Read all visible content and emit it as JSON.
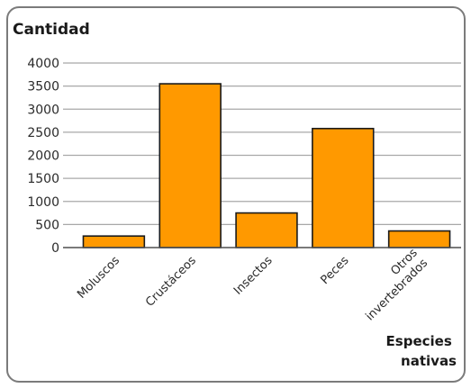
{
  "chart_data": {
    "type": "bar",
    "ylabel": "Cantidad",
    "xlabel": [
      "Especies",
      "nativas"
    ],
    "categories": [
      [
        "Moluscos"
      ],
      [
        "Crustáceos"
      ],
      [
        "Insectos"
      ],
      [
        "Peces"
      ],
      [
        "Otros",
        "invertebrados"
      ]
    ],
    "values": [
      250,
      3550,
      750,
      2580,
      360
    ],
    "ylim": [
      0,
      4000
    ],
    "yticks": [
      0,
      500,
      1000,
      1500,
      2000,
      2500,
      3000,
      3500,
      4000
    ],
    "grid": true,
    "bar_color": "#ff9900",
    "bar_edge_color": "#1a1a1a",
    "grid_color": "#a8a8a8"
  }
}
